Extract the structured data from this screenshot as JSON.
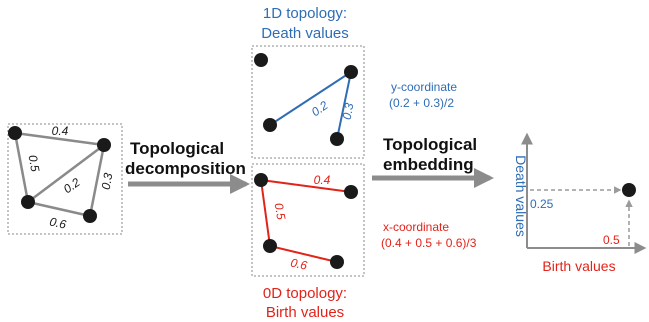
{
  "colors": {
    "gray_edge": "#8a8a8a",
    "blue": "#2f6db5",
    "red": "#e2231a",
    "dot": "#1a1a1a",
    "arrow_gray": "#8c8c8c",
    "dashed_box": "#8a8a8a"
  },
  "original": {
    "edge_labels": [
      "0.4",
      "0.5",
      "0.2",
      "0.3",
      "0.6"
    ]
  },
  "topology_1d": {
    "title_line1": "1D topology:",
    "title_line2": "Death values",
    "edge_labels": [
      "0.2",
      "0.3"
    ],
    "formula_line1": "y-coordinate",
    "formula_line2": "(0.2 + 0.3)/2"
  },
  "topology_0d": {
    "title_line1": "0D topology:",
    "title_line2": "Birth values",
    "edge_labels": [
      "0.4",
      "0.5",
      "0.6"
    ],
    "formula_line1": "x-coordinate",
    "formula_line2": "(0.4 + 0.5 + 0.6)/3"
  },
  "arrows": {
    "decomposition_line1": "Topological",
    "decomposition_line2": "decomposition",
    "embedding_line1": "Topological",
    "embedding_line2": "embedding"
  },
  "plot": {
    "y_axis_label": "Death values",
    "x_axis_label": "Birth values",
    "y_value_label": "0.25",
    "x_value_label": "0.5"
  }
}
